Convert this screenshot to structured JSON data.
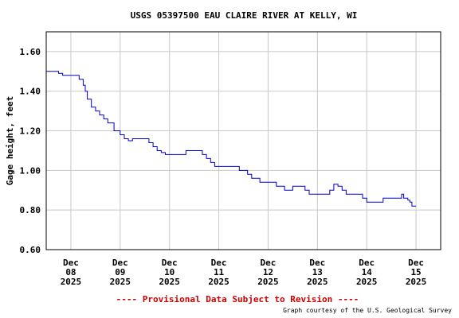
{
  "chart_data": {
    "type": "line",
    "title": "USGS 05397500 EAU CLAIRE RIVER AT KELLY, WI",
    "ylabel": "Gage height, feet",
    "xlabel": "",
    "ylim": [
      0.6,
      1.7
    ],
    "yticks": [
      "0.60",
      "0.80",
      "1.00",
      "1.20",
      "1.40",
      "1.60"
    ],
    "xlim": [
      "2025-12-07T12:00",
      "2025-12-15T12:00"
    ],
    "xticks": [
      {
        "month": "Dec",
        "day": "08",
        "year": "2025"
      },
      {
        "month": "Dec",
        "day": "09",
        "year": "2025"
      },
      {
        "month": "Dec",
        "day": "10",
        "year": "2025"
      },
      {
        "month": "Dec",
        "day": "11",
        "year": "2025"
      },
      {
        "month": "Dec",
        "day": "12",
        "year": "2025"
      },
      {
        "month": "Dec",
        "day": "13",
        "year": "2025"
      },
      {
        "month": "Dec",
        "day": "14",
        "year": "2025"
      },
      {
        "month": "Dec",
        "day": "15",
        "year": "2025"
      }
    ],
    "grid": true,
    "line_color": "#0000cc",
    "series": [
      {
        "name": "",
        "x": [
          "2025-12-07T12:00",
          "2025-12-07T18:00",
          "2025-12-07T20:00",
          "2025-12-08T03:00",
          "2025-12-08T04:00",
          "2025-12-08T06:00",
          "2025-12-08T07:00",
          "2025-12-08T08:00",
          "2025-12-08T10:00",
          "2025-12-08T12:00",
          "2025-12-08T14:00",
          "2025-12-08T16:00",
          "2025-12-08T18:00",
          "2025-12-08T21:00",
          "2025-12-09T00:00",
          "2025-12-09T02:00",
          "2025-12-09T04:00",
          "2025-12-09T06:00",
          "2025-12-09T08:00",
          "2025-12-09T10:00",
          "2025-12-09T14:00",
          "2025-12-09T16:00",
          "2025-12-09T18:00",
          "2025-12-09T20:00",
          "2025-12-09T22:00",
          "2025-12-10T00:00",
          "2025-12-10T06:00",
          "2025-12-10T08:00",
          "2025-12-10T14:00",
          "2025-12-10T16:00",
          "2025-12-10T18:00",
          "2025-12-10T20:00",
          "2025-12-10T22:00",
          "2025-12-11T00:00",
          "2025-12-11T04:00",
          "2025-12-11T06:00",
          "2025-12-11T08:00",
          "2025-12-11T10:00",
          "2025-12-11T14:00",
          "2025-12-11T16:00",
          "2025-12-11T20:00",
          "2025-12-12T00:00",
          "2025-12-12T04:00",
          "2025-12-12T08:00",
          "2025-12-12T12:00",
          "2025-12-12T14:00",
          "2025-12-12T16:00",
          "2025-12-12T18:00",
          "2025-12-12T20:00",
          "2025-12-13T00:00",
          "2025-12-13T04:00",
          "2025-12-13T06:00",
          "2025-12-13T08:00",
          "2025-12-13T10:00",
          "2025-12-13T12:00",
          "2025-12-13T14:00",
          "2025-12-13T18:00",
          "2025-12-13T22:00",
          "2025-12-14T00:00",
          "2025-12-14T04:00",
          "2025-12-14T08:00",
          "2025-12-14T10:00",
          "2025-12-14T14:00",
          "2025-12-14T16:00",
          "2025-12-14T17:00",
          "2025-12-14T18:00",
          "2025-12-14T20:00",
          "2025-12-14T21:00",
          "2025-12-14T22:00",
          "2025-12-15T00:00"
        ],
        "y": [
          1.5,
          1.49,
          1.48,
          1.48,
          1.46,
          1.43,
          1.4,
          1.36,
          1.32,
          1.3,
          1.28,
          1.26,
          1.24,
          1.2,
          1.18,
          1.16,
          1.15,
          1.16,
          1.16,
          1.16,
          1.14,
          1.12,
          1.1,
          1.09,
          1.08,
          1.08,
          1.08,
          1.1,
          1.1,
          1.08,
          1.06,
          1.04,
          1.02,
          1.02,
          1.02,
          1.02,
          1.02,
          1.0,
          0.98,
          0.96,
          0.94,
          0.94,
          0.92,
          0.9,
          0.92,
          0.92,
          0.92,
          0.9,
          0.88,
          0.88,
          0.88,
          0.9,
          0.93,
          0.92,
          0.9,
          0.88,
          0.88,
          0.86,
          0.84,
          0.84,
          0.86,
          0.86,
          0.86,
          0.86,
          0.88,
          0.86,
          0.85,
          0.84,
          0.82,
          0.82
        ]
      }
    ]
  },
  "footer": {
    "provisional": "---- Provisional Data Subject to Revision ----",
    "credit": "Graph courtesy of the U.S. Geological Survey"
  },
  "colors": {
    "frame": "#000000",
    "grid": "#c8c8c8",
    "provisional": "#cc0000"
  }
}
